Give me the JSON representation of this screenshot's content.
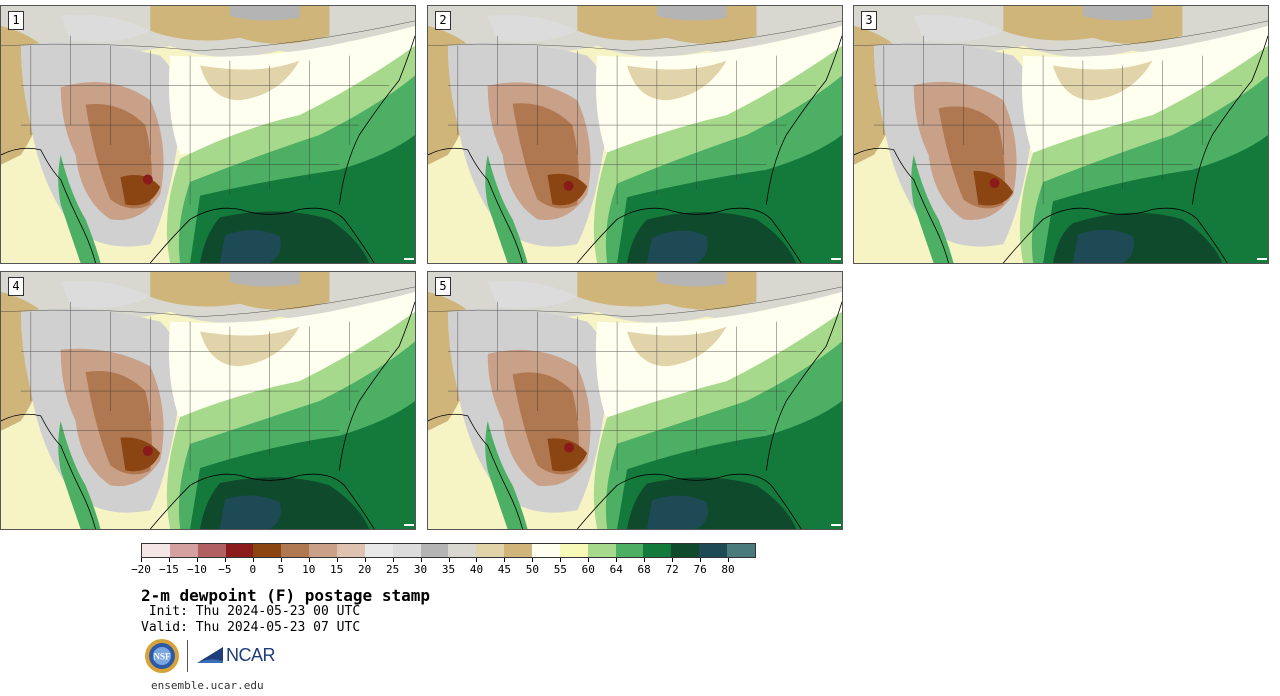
{
  "panels": [
    {
      "label": "1"
    },
    {
      "label": "2"
    },
    {
      "label": "3"
    },
    {
      "label": "4"
    },
    {
      "label": "5"
    }
  ],
  "colorbar": {
    "colors": [
      "#f5e6e6",
      "#d4a0a0",
      "#b06060",
      "#8b1a1a",
      "#8b4513",
      "#b07850",
      "#c9a088",
      "#dec3b0",
      "#e8e8e8",
      "#dcdcdc",
      "#b4b4b4",
      "#d8d8d0",
      "#e2d4aa",
      "#cfb57a",
      "#fffff0",
      "#f6f9b8",
      "#a6d98c",
      "#4caf64",
      "#137a3c",
      "#0e4a2b",
      "#1e4a55",
      "#4a7a7c"
    ],
    "tick_labels": [
      "−20",
      "−15",
      "−10",
      "−5",
      "0",
      "5",
      "10",
      "15",
      "20",
      "25",
      "30",
      "35",
      "40",
      "45",
      "50",
      "55",
      "60",
      "64",
      "68",
      "72",
      "76",
      "80"
    ]
  },
  "title": "2-m dewpoint (F) postage stamp",
  "init": " Init: Thu 2024-05-23 00 UTC",
  "valid": "Valid: Thu 2024-05-23 07 UTC",
  "logos": {
    "ncar_text": "NCAR",
    "nsf_text": "NSF"
  },
  "site": "ensemble.ucar.edu"
}
